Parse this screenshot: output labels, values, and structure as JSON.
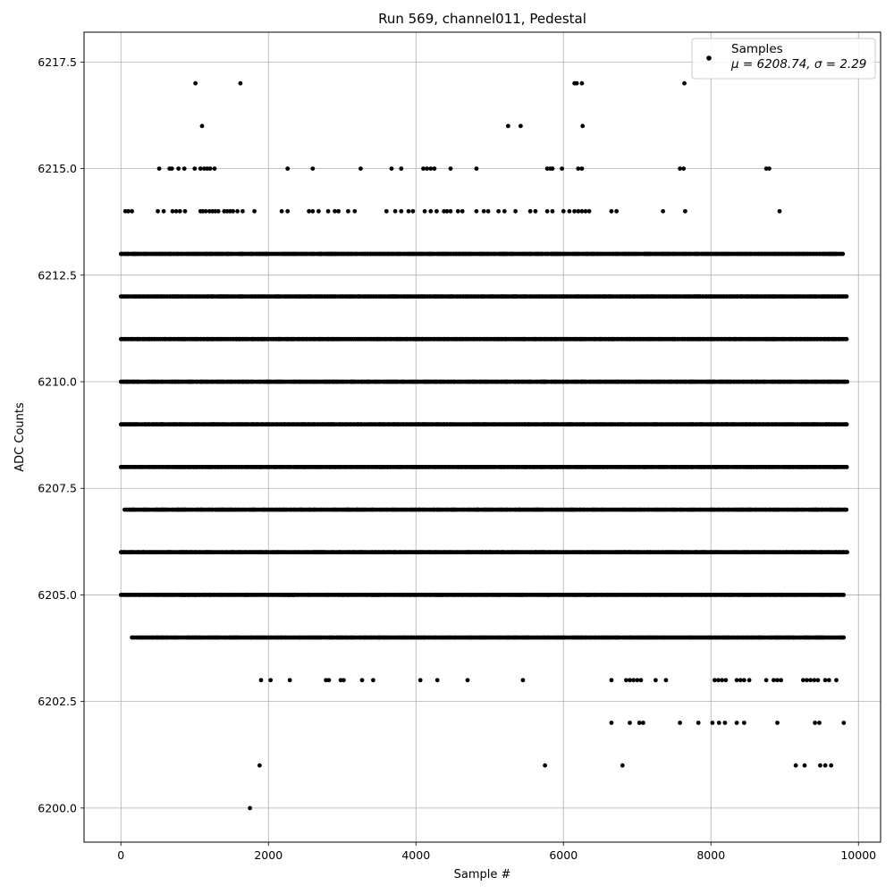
{
  "chart_data": {
    "type": "scatter",
    "title": "Run 569, channel011, Pedestal",
    "xlabel": "Sample #",
    "ylabel": "ADC Counts",
    "xlim": [
      -500,
      10300
    ],
    "ylim": [
      6199.2,
      6218.2
    ],
    "xticks": [
      0,
      2000,
      4000,
      6000,
      8000,
      10000
    ],
    "yticks": [
      6200.0,
      6202.5,
      6205.0,
      6207.5,
      6210.0,
      6212.5,
      6215.0,
      6217.5
    ],
    "xtick_labels": [
      "0",
      "2000",
      "4000",
      "6000",
      "8000",
      "10000"
    ],
    "ytick_labels": [
      "6200.0",
      "6202.5",
      "6205.0",
      "6207.5",
      "6210.0",
      "6212.5",
      "6215.0",
      "6217.5"
    ],
    "grid": true,
    "legend": {
      "placement": "top-right",
      "entries": [
        {
          "name": "Samples",
          "stats": "μ = 6208.74, σ = 2.29"
        }
      ]
    },
    "marker_color": "#000000",
    "series": [
      {
        "name": "Samples",
        "dense_levels": [
          {
            "y": 6204,
            "x_start": 150,
            "x_end": 9800
          },
          {
            "y": 6205,
            "x_start": 0,
            "x_end": 9800
          },
          {
            "y": 6206,
            "x_start": 0,
            "x_end": 9850
          },
          {
            "y": 6207,
            "x_start": 50,
            "x_end": 9850
          },
          {
            "y": 6208,
            "x_start": 0,
            "x_end": 9850
          },
          {
            "y": 6209,
            "x_start": 0,
            "x_end": 9850
          },
          {
            "y": 6210,
            "x_start": 0,
            "x_end": 9850
          },
          {
            "y": 6211,
            "x_start": 0,
            "x_end": 9850
          },
          {
            "y": 6212,
            "x_start": 0,
            "x_end": 9850
          },
          {
            "y": 6213,
            "x_start": 0,
            "x_end": 9800
          }
        ],
        "sparse_points": [
          [
            1750,
            6200
          ],
          [
            1880,
            6201
          ],
          [
            5750,
            6201
          ],
          [
            6800,
            6201
          ],
          [
            9150,
            6201
          ],
          [
            9270,
            6201
          ],
          [
            9480,
            6201
          ],
          [
            9550,
            6201
          ],
          [
            9630,
            6201
          ],
          [
            6650,
            6202
          ],
          [
            6900,
            6202
          ],
          [
            7030,
            6202
          ],
          [
            7080,
            6202
          ],
          [
            7580,
            6202
          ],
          [
            7830,
            6202
          ],
          [
            8020,
            6202
          ],
          [
            8110,
            6202
          ],
          [
            8190,
            6202
          ],
          [
            8350,
            6202
          ],
          [
            8450,
            6202
          ],
          [
            8900,
            6202
          ],
          [
            9410,
            6202
          ],
          [
            9470,
            6202
          ],
          [
            9800,
            6202
          ],
          [
            1900,
            6203
          ],
          [
            2030,
            6203
          ],
          [
            2290,
            6203
          ],
          [
            2780,
            6203
          ],
          [
            2820,
            6203
          ],
          [
            2980,
            6203
          ],
          [
            3020,
            6203
          ],
          [
            3270,
            6203
          ],
          [
            3420,
            6203
          ],
          [
            4060,
            6203
          ],
          [
            4290,
            6203
          ],
          [
            4700,
            6203
          ],
          [
            5450,
            6203
          ],
          [
            6650,
            6203
          ],
          [
            6850,
            6203
          ],
          [
            6900,
            6203
          ],
          [
            6950,
            6203
          ],
          [
            7000,
            6203
          ],
          [
            7050,
            6203
          ],
          [
            7250,
            6203
          ],
          [
            7390,
            6203
          ],
          [
            8050,
            6203
          ],
          [
            8100,
            6203
          ],
          [
            8150,
            6203
          ],
          [
            8200,
            6203
          ],
          [
            8350,
            6203
          ],
          [
            8400,
            6203
          ],
          [
            8450,
            6203
          ],
          [
            8520,
            6203
          ],
          [
            8750,
            6203
          ],
          [
            8850,
            6203
          ],
          [
            8900,
            6203
          ],
          [
            8950,
            6203
          ],
          [
            9250,
            6203
          ],
          [
            9300,
            6203
          ],
          [
            9350,
            6203
          ],
          [
            9400,
            6203
          ],
          [
            9450,
            6203
          ],
          [
            9550,
            6203
          ],
          [
            9600,
            6203
          ],
          [
            9700,
            6203
          ],
          [
            60,
            6214
          ],
          [
            100,
            6214
          ],
          [
            150,
            6214
          ],
          [
            500,
            6214
          ],
          [
            580,
            6214
          ],
          [
            700,
            6214
          ],
          [
            750,
            6214
          ],
          [
            800,
            6214
          ],
          [
            870,
            6214
          ],
          [
            1080,
            6214
          ],
          [
            1110,
            6214
          ],
          [
            1150,
            6214
          ],
          [
            1200,
            6214
          ],
          [
            1240,
            6214
          ],
          [
            1280,
            6214
          ],
          [
            1320,
            6214
          ],
          [
            1400,
            6214
          ],
          [
            1440,
            6214
          ],
          [
            1480,
            6214
          ],
          [
            1520,
            6214
          ],
          [
            1580,
            6214
          ],
          [
            1650,
            6214
          ],
          [
            1810,
            6214
          ],
          [
            2180,
            6214
          ],
          [
            2260,
            6214
          ],
          [
            2550,
            6214
          ],
          [
            2600,
            6214
          ],
          [
            2680,
            6214
          ],
          [
            2810,
            6214
          ],
          [
            2900,
            6214
          ],
          [
            2950,
            6214
          ],
          [
            3080,
            6214
          ],
          [
            3170,
            6214
          ],
          [
            3600,
            6214
          ],
          [
            3720,
            6214
          ],
          [
            3800,
            6214
          ],
          [
            3900,
            6214
          ],
          [
            3960,
            6214
          ],
          [
            4120,
            6214
          ],
          [
            4200,
            6214
          ],
          [
            4280,
            6214
          ],
          [
            4380,
            6214
          ],
          [
            4420,
            6214
          ],
          [
            4470,
            6214
          ],
          [
            4570,
            6214
          ],
          [
            4630,
            6214
          ],
          [
            4820,
            6214
          ],
          [
            4920,
            6214
          ],
          [
            4980,
            6214
          ],
          [
            5120,
            6214
          ],
          [
            5200,
            6214
          ],
          [
            5350,
            6214
          ],
          [
            5550,
            6214
          ],
          [
            5620,
            6214
          ],
          [
            5780,
            6214
          ],
          [
            5850,
            6214
          ],
          [
            6000,
            6214
          ],
          [
            6080,
            6214
          ],
          [
            6150,
            6214
          ],
          [
            6200,
            6214
          ],
          [
            6250,
            6214
          ],
          [
            6300,
            6214
          ],
          [
            6350,
            6214
          ],
          [
            6650,
            6214
          ],
          [
            6720,
            6214
          ],
          [
            7350,
            6214
          ],
          [
            7650,
            6214
          ],
          [
            8930,
            6214
          ],
          [
            520,
            6215
          ],
          [
            660,
            6215
          ],
          [
            690,
            6215
          ],
          [
            780,
            6215
          ],
          [
            860,
            6215
          ],
          [
            1000,
            6215
          ],
          [
            1080,
            6215
          ],
          [
            1130,
            6215
          ],
          [
            1170,
            6215
          ],
          [
            1210,
            6215
          ],
          [
            1270,
            6215
          ],
          [
            2260,
            6215
          ],
          [
            2600,
            6215
          ],
          [
            3250,
            6215
          ],
          [
            3670,
            6215
          ],
          [
            3800,
            6215
          ],
          [
            4100,
            6215
          ],
          [
            4150,
            6215
          ],
          [
            4200,
            6215
          ],
          [
            4250,
            6215
          ],
          [
            4470,
            6215
          ],
          [
            4820,
            6215
          ],
          [
            5780,
            6215
          ],
          [
            5820,
            6215
          ],
          [
            5850,
            6215
          ],
          [
            5980,
            6215
          ],
          [
            6200,
            6215
          ],
          [
            6250,
            6215
          ],
          [
            7580,
            6215
          ],
          [
            7630,
            6215
          ],
          [
            8750,
            6215
          ],
          [
            8790,
            6215
          ],
          [
            1100,
            6216
          ],
          [
            5250,
            6216
          ],
          [
            5420,
            6216
          ],
          [
            6260,
            6216
          ],
          [
            1010,
            6217
          ],
          [
            1620,
            6217
          ],
          [
            6150,
            6217
          ],
          [
            6180,
            6217
          ],
          [
            6250,
            6217
          ],
          [
            7640,
            6217
          ]
        ]
      }
    ]
  }
}
